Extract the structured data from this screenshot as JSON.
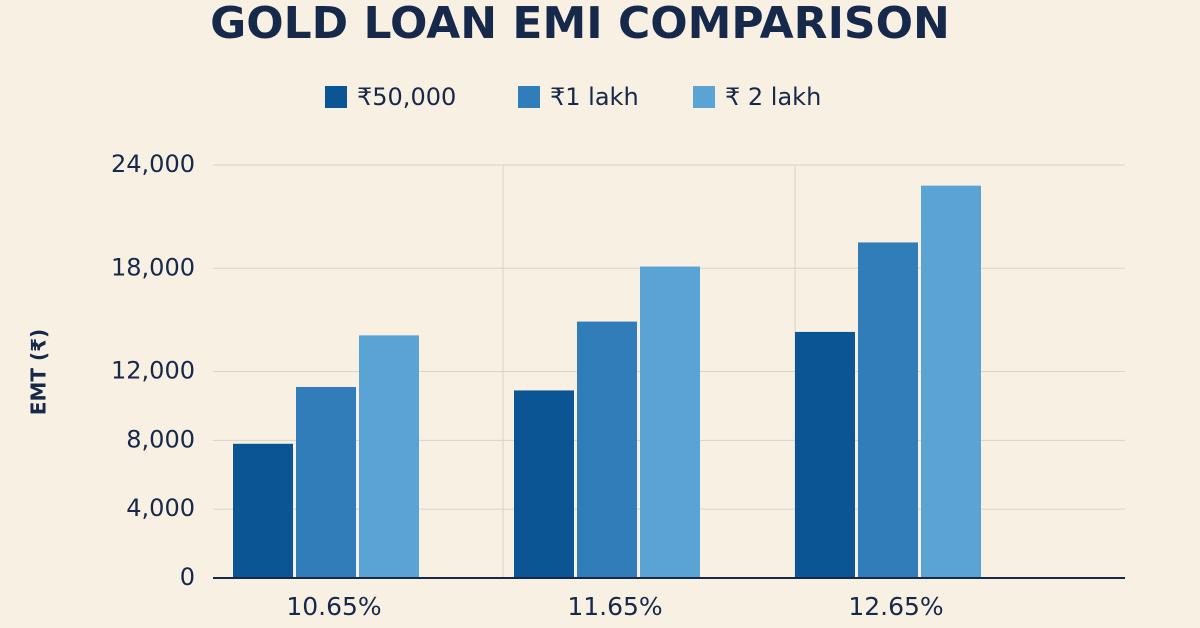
{
  "chart_data": {
    "type": "bar",
    "title": "GOLD LOAN EMI COMPARISON",
    "y_label": "EMT (₹)",
    "categories": [
      "10.65%",
      "11.65%",
      "12.65%"
    ],
    "series": [
      {
        "name": "₹50,000",
        "color": "#0b5595",
        "values": [
          7800,
          10900,
          14300
        ]
      },
      {
        "name": "₹1 lakh",
        "color": "#307dba",
        "values": [
          11100,
          14900,
          19500
        ]
      },
      {
        "name": "₹ 2 lakh",
        "color": "#59a4d5",
        "values": [
          14100,
          18100,
          22800
        ]
      }
    ],
    "ylim": [
      0,
      24000
    ],
    "yticks": [
      0,
      {
        "value": 4000,
        "label": "4,000"
      },
      {
        "value": 8000,
        "label": "8,000"
      },
      {
        "value": 12000,
        "label": "12,000"
      },
      {
        "value": 18000,
        "label": "18,000"
      },
      {
        "value": 24000,
        "label": "24,000"
      }
    ],
    "grid": true
  }
}
